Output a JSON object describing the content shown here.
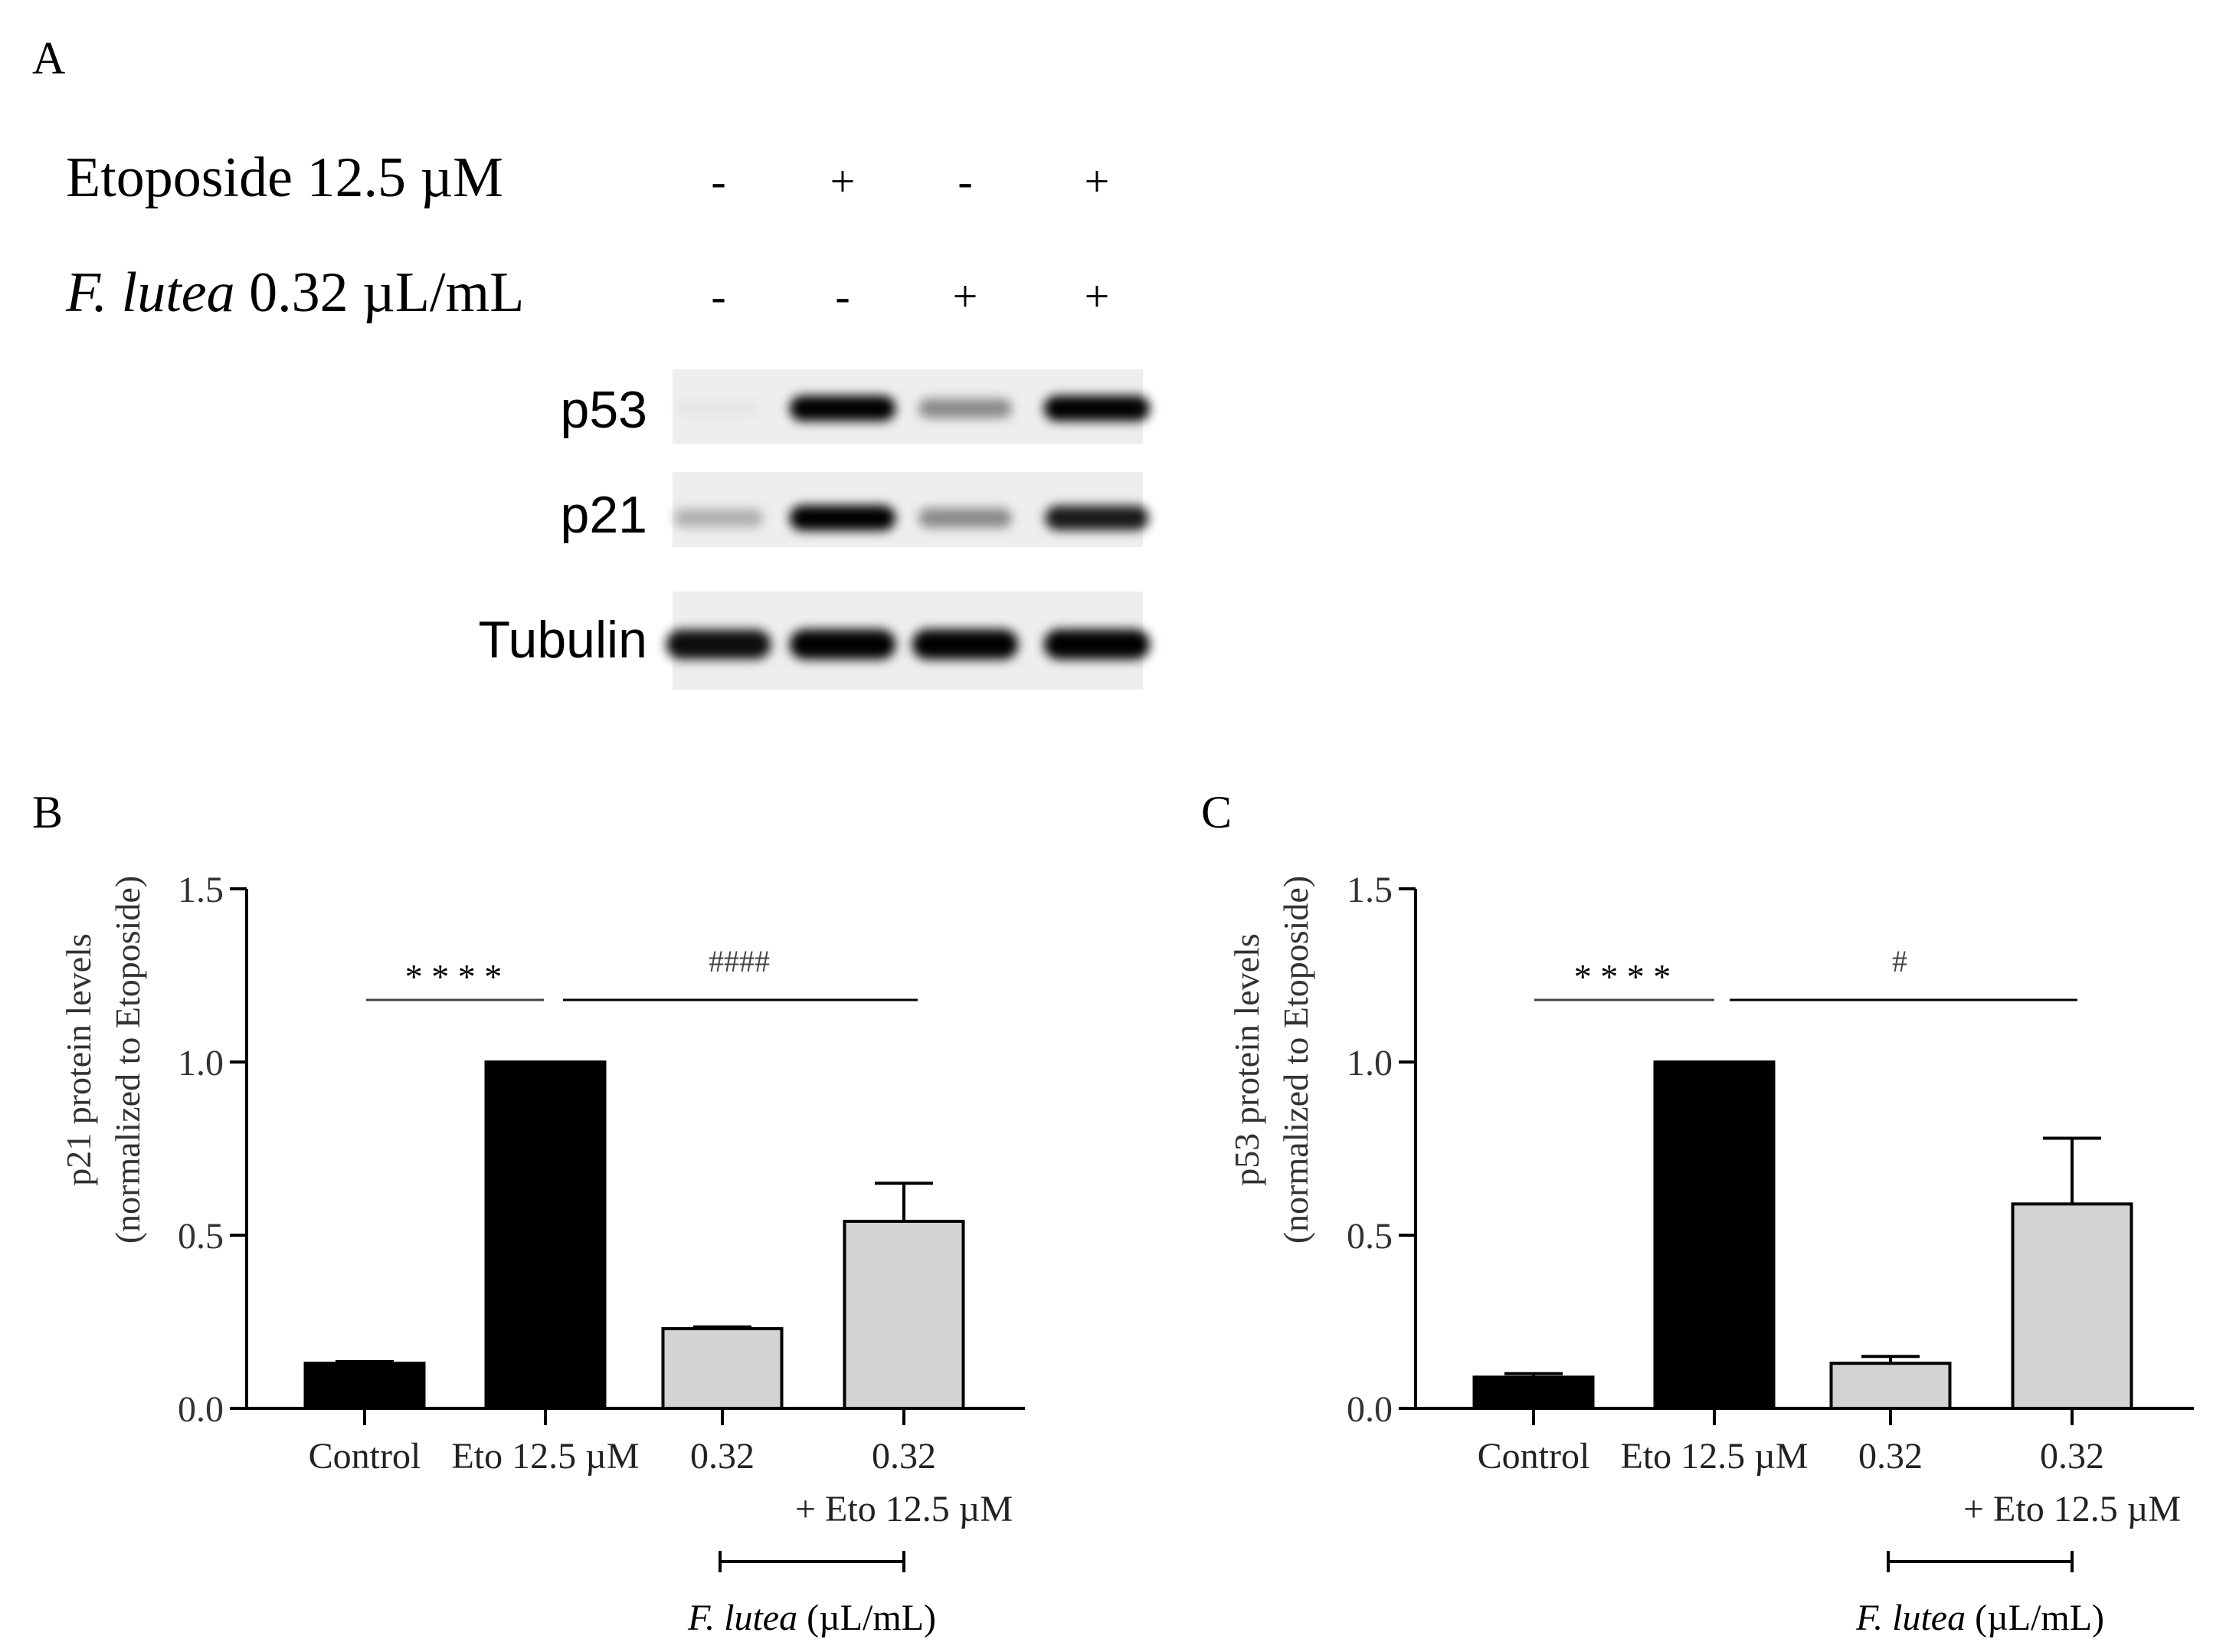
{
  "panel_a": {
    "letter": "A",
    "conditions": [
      {
        "label_plain": "Etoposide 12.5 µM",
        "label_italic": "",
        "label_rest": "",
        "signs": [
          "-",
          "+",
          "-",
          "+"
        ]
      },
      {
        "label_plain": "",
        "label_italic": "F. lutea",
        "label_rest": " 0.32 µL/mL",
        "signs": [
          "-",
          "-",
          "+",
          "+"
        ]
      }
    ],
    "blots": [
      {
        "label": "p53",
        "intensities": [
          0.03,
          0.95,
          0.4,
          0.95
        ]
      },
      {
        "label": "p21",
        "intensities": [
          0.25,
          0.95,
          0.4,
          0.85
        ]
      },
      {
        "label": "Tubulin",
        "intensities": [
          0.9,
          0.95,
          0.95,
          0.95
        ]
      }
    ]
  },
  "chart_data": [
    {
      "panel": "B",
      "type": "bar",
      "ylabel_line1": "p21 protein levels",
      "ylabel_line2": "(normalized to Etoposide)",
      "ylim": [
        0,
        1.5
      ],
      "yticks": [
        "0.0",
        "0.5",
        "1.0",
        "1.5"
      ],
      "categories": [
        "Control",
        "Eto 12.5 µM",
        "0.32",
        "0.32"
      ],
      "category_sub": [
        "",
        "",
        "",
        "+ Eto 12.5 µM"
      ],
      "values": [
        0.13,
        1.0,
        0.23,
        0.54
      ],
      "errors": [
        0.005,
        0.0,
        0.005,
        0.11
      ],
      "bar_colors": [
        "#000000",
        "#000000",
        "#d3d3d3",
        "#d3d3d3"
      ],
      "sig_left": "* * * *",
      "sig_right": "####",
      "group_label_italic": "F. lutea",
      "group_label_rest": " (µL/mL)"
    },
    {
      "panel": "C",
      "type": "bar",
      "ylabel_line1": "p53 protein levels",
      "ylabel_line2": "(normalized to Etoposide)",
      "ylim": [
        0,
        1.5
      ],
      "yticks": [
        "0.0",
        "0.5",
        "1.0",
        "1.5"
      ],
      "categories": [
        "Control",
        "Eto 12.5 µM",
        "0.32",
        "0.32"
      ],
      "category_sub": [
        "",
        "",
        "",
        "+ Eto 12.5 µM"
      ],
      "values": [
        0.09,
        1.0,
        0.13,
        0.59
      ],
      "errors": [
        0.01,
        0.0,
        0.02,
        0.19
      ],
      "bar_colors": [
        "#000000",
        "#000000",
        "#d3d3d3",
        "#d3d3d3"
      ],
      "sig_left": "* * * *",
      "sig_right": "#",
      "group_label_italic": "F. lutea",
      "group_label_rest": " (µL/mL)"
    }
  ]
}
